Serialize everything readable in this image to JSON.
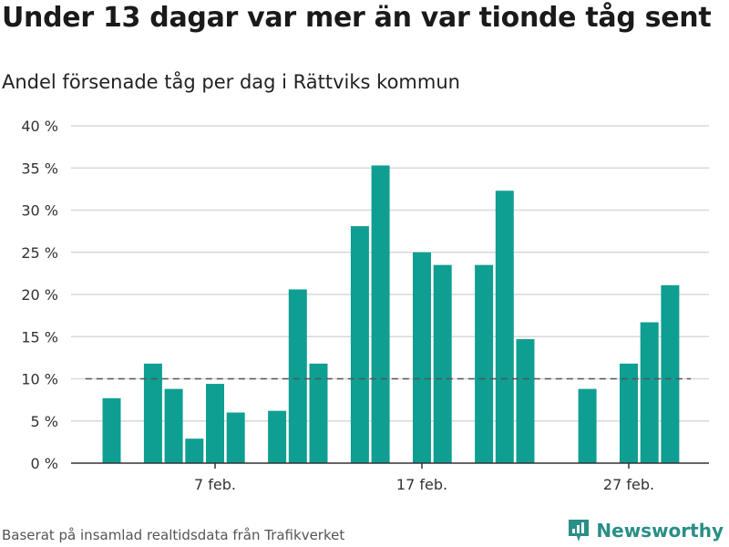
{
  "title": "Under 13 dagar var mer än var tionde tåg sent",
  "subtitle": "Andel försenade tåg per dag i Rättviks kommun",
  "footer": {
    "source": "Baserat på insamlad realtidsdata från Trafikverket",
    "brand": "Newsworthy"
  },
  "colors": {
    "bar": "#0f9e92",
    "reference_line": "#555555",
    "grid": "#d9d9d9",
    "brand": "#2a8f86"
  },
  "chart_data": {
    "type": "bar",
    "x_unit": "day of February",
    "x_range": [
      1,
      30
    ],
    "x_ticks": [
      {
        "x": 7,
        "label": "7 feb."
      },
      {
        "x": 17,
        "label": "17 feb."
      },
      {
        "x": 27,
        "label": "27 feb."
      }
    ],
    "ylim": [
      0,
      40
    ],
    "y_ticks": [
      {
        "value": 0,
        "label": "0 %"
      },
      {
        "value": 5,
        "label": "5 %"
      },
      {
        "value": 10,
        "label": "10 %"
      },
      {
        "value": 15,
        "label": "15 %"
      },
      {
        "value": 20,
        "label": "20 %"
      },
      {
        "value": 25,
        "label": "25 %"
      },
      {
        "value": 30,
        "label": "30 %"
      },
      {
        "value": 35,
        "label": "35 %"
      },
      {
        "value": 40,
        "label": "40 %"
      }
    ],
    "reference_line": 10,
    "grid": true,
    "points": [
      {
        "x": 2,
        "y": 7.7
      },
      {
        "x": 4,
        "y": 11.8
      },
      {
        "x": 5,
        "y": 8.8
      },
      {
        "x": 6,
        "y": 2.9
      },
      {
        "x": 7,
        "y": 9.4
      },
      {
        "x": 8,
        "y": 6.0
      },
      {
        "x": 10,
        "y": 6.2
      },
      {
        "x": 11,
        "y": 20.6
      },
      {
        "x": 12,
        "y": 11.8
      },
      {
        "x": 14,
        "y": 28.1
      },
      {
        "x": 15,
        "y": 35.3
      },
      {
        "x": 17,
        "y": 25.0
      },
      {
        "x": 18,
        "y": 23.5
      },
      {
        "x": 20,
        "y": 23.5
      },
      {
        "x": 21,
        "y": 32.3
      },
      {
        "x": 22,
        "y": 14.7
      },
      {
        "x": 25,
        "y": 8.8
      },
      {
        "x": 27,
        "y": 11.8
      },
      {
        "x": 28,
        "y": 16.7
      },
      {
        "x": 29,
        "y": 21.1
      }
    ]
  }
}
